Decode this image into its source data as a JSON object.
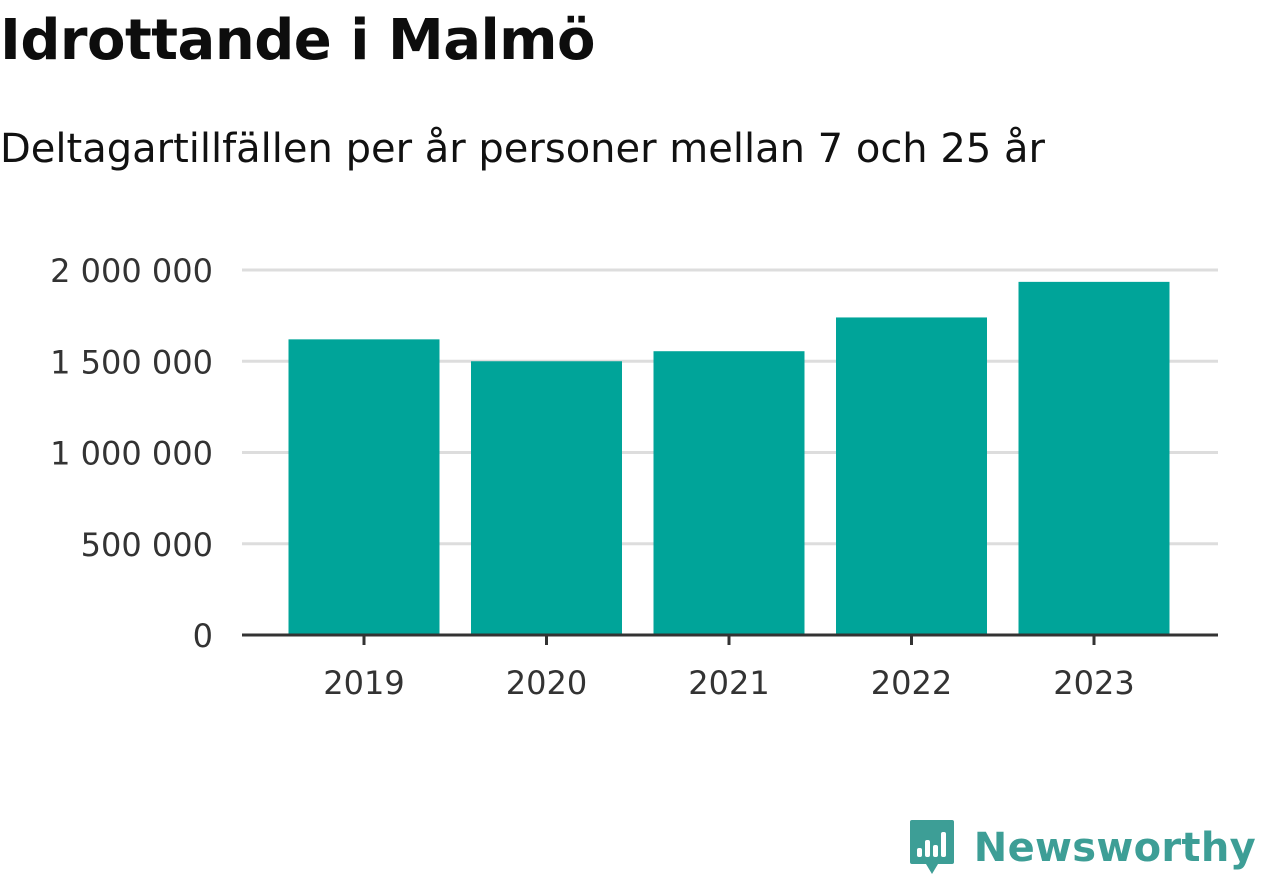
{
  "title": "Idrottande i Malmö",
  "subtitle": "Deltagartillfällen per år personer mellan 7 och 25 år",
  "brand": {
    "name": "Newsworthy",
    "icon": "bar-chart-speech-bubble-icon",
    "color": "#3d9e96"
  },
  "chart_data": {
    "type": "bar",
    "categories": [
      "2019",
      "2020",
      "2021",
      "2022",
      "2023"
    ],
    "values": [
      1620000,
      1500000,
      1555000,
      1740000,
      1935000
    ],
    "ylim": [
      0,
      2000000
    ],
    "yticks": [
      0,
      500000,
      1000000,
      1500000,
      2000000
    ],
    "ytick_labels": [
      "0",
      "500 000",
      "1 000 000",
      "1 500 000",
      "2 000 000"
    ],
    "grid": true,
    "bar_color": "#00a499",
    "xlabel": "",
    "ylabel": ""
  }
}
